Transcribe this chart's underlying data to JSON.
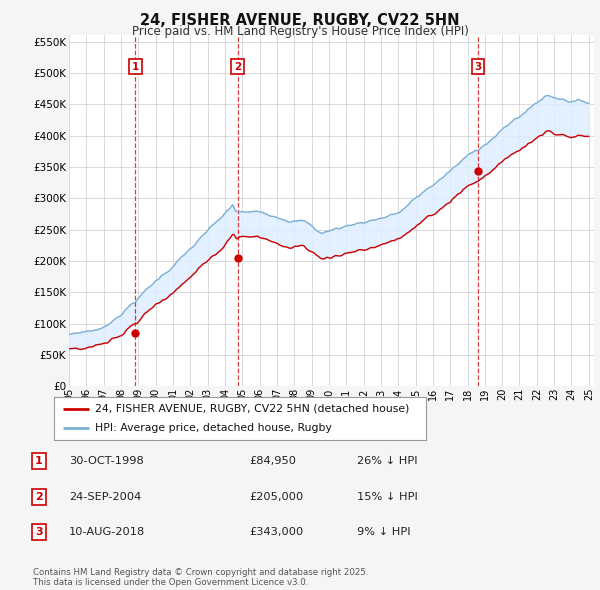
{
  "title": "24, FISHER AVENUE, RUGBY, CV22 5HN",
  "subtitle": "Price paid vs. HM Land Registry's House Price Index (HPI)",
  "ylim": [
    0,
    560000
  ],
  "yticks": [
    0,
    50000,
    100000,
    150000,
    200000,
    250000,
    300000,
    350000,
    400000,
    450000,
    500000,
    550000
  ],
  "house_color": "#cc0000",
  "hpi_color": "#7bafd4",
  "fill_color": "#ddeeff",
  "vline_color": "#cc0000",
  "grid_color": "#cccccc",
  "background_color": "#f5f5f5",
  "plot_bg_color": "#ffffff",
  "purchases": [
    {
      "date_num": 1998.83,
      "price": 84950,
      "label": "1"
    },
    {
      "date_num": 2004.73,
      "price": 205000,
      "label": "2"
    },
    {
      "date_num": 2018.6,
      "price": 343000,
      "label": "3"
    }
  ],
  "legend_house": "24, FISHER AVENUE, RUGBY, CV22 5HN (detached house)",
  "legend_hpi": "HPI: Average price, detached house, Rugby",
  "table_rows": [
    {
      "num": "1",
      "date": "30-OCT-1998",
      "price": "£84,950",
      "pct": "26% ↓ HPI"
    },
    {
      "num": "2",
      "date": "24-SEP-2004",
      "price": "£205,000",
      "pct": "15% ↓ HPI"
    },
    {
      "num": "3",
      "date": "10-AUG-2018",
      "price": "£343,000",
      "pct": "9% ↓ HPI"
    }
  ],
  "footnote": "Contains HM Land Registry data © Crown copyright and database right 2025.\nThis data is licensed under the Open Government Licence v3.0."
}
